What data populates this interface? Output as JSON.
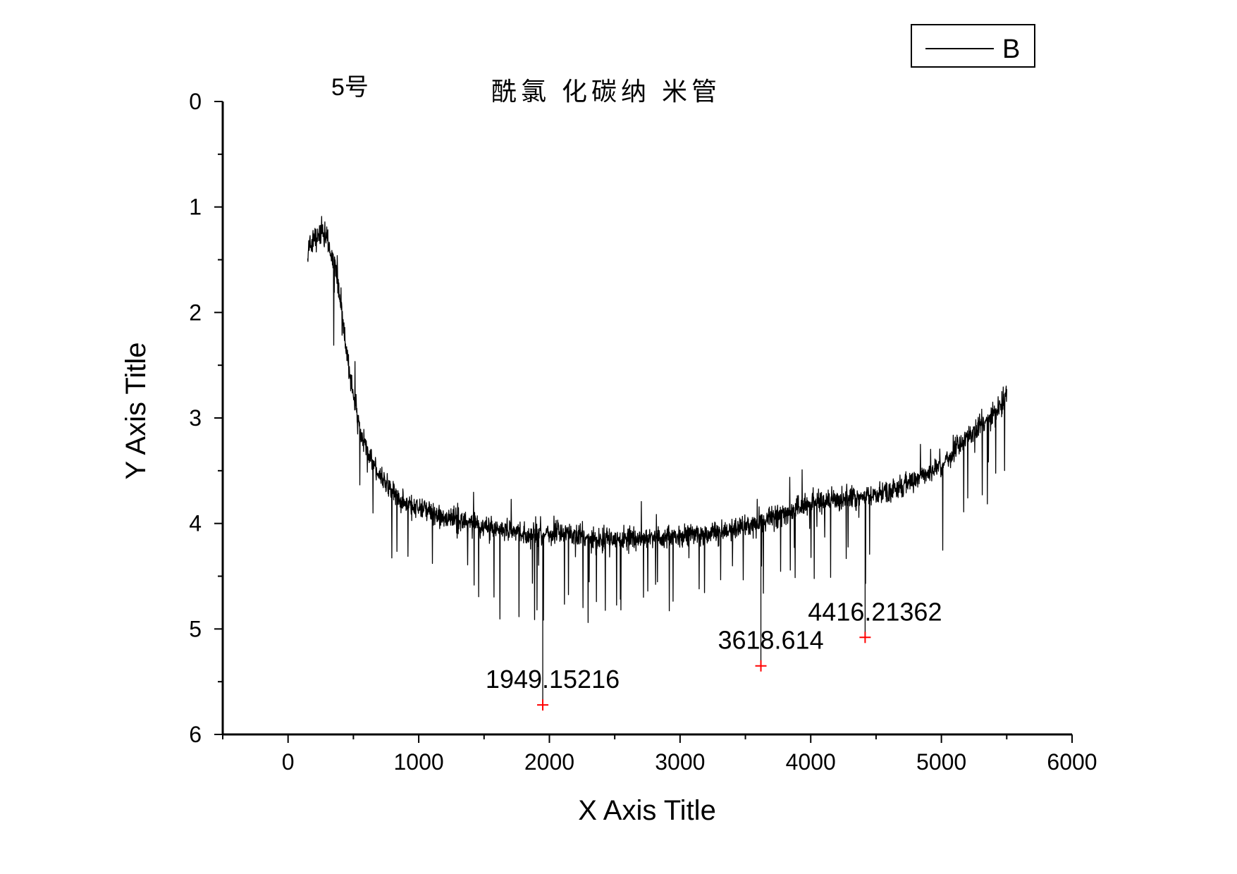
{
  "chart_data": {
    "type": "line",
    "title": "酰氯 化碳纳 米管",
    "subtitle": "5号",
    "xlabel": "X Axis Title",
    "ylabel": "Y Axis Title",
    "xlim": [
      -500,
      6000
    ],
    "ylim": [
      0,
      6
    ],
    "y_inverted": true,
    "grid": false,
    "legend_position": "top-right",
    "x_ticks": [
      "0",
      "1000",
      "2000",
      "3000",
      "4000",
      "5000",
      "6000"
    ],
    "y_ticks": [
      "0",
      "1",
      "2",
      "3",
      "4",
      "5",
      "6"
    ],
    "series": [
      {
        "name": "B",
        "color": "#000000",
        "x_range": [
          150,
          5500
        ],
        "x": [
          150,
          200,
          250,
          300,
          350,
          400,
          450,
          500,
          550,
          600,
          700,
          800,
          900,
          1000,
          1200,
          1400,
          1600,
          1800,
          2000,
          2200,
          2400,
          2600,
          2800,
          3000,
          3200,
          3400,
          3600,
          3800,
          4000,
          4200,
          4400,
          4600,
          4800,
          5000,
          5200,
          5400,
          5500
        ],
        "y": [
          1.4,
          1.3,
          1.25,
          1.3,
          1.5,
          1.9,
          2.4,
          2.8,
          3.1,
          3.3,
          3.55,
          3.7,
          3.8,
          3.85,
          3.95,
          4.0,
          4.05,
          4.1,
          4.1,
          4.12,
          4.15,
          4.15,
          4.13,
          4.12,
          4.1,
          4.07,
          4.0,
          3.9,
          3.8,
          3.78,
          3.75,
          3.7,
          3.6,
          3.45,
          3.2,
          2.95,
          2.8
        ]
      }
    ],
    "annotations": [
      {
        "label": "1949.15216",
        "x": 1949.15216,
        "y": 5.72,
        "color": "#ff0000"
      },
      {
        "label": "3618.614",
        "x": 3618.614,
        "y": 5.35,
        "color": "#ff0000"
      },
      {
        "label": "4416.21362",
        "x": 4416.21362,
        "y": 5.08,
        "color": "#ff0000"
      }
    ]
  }
}
